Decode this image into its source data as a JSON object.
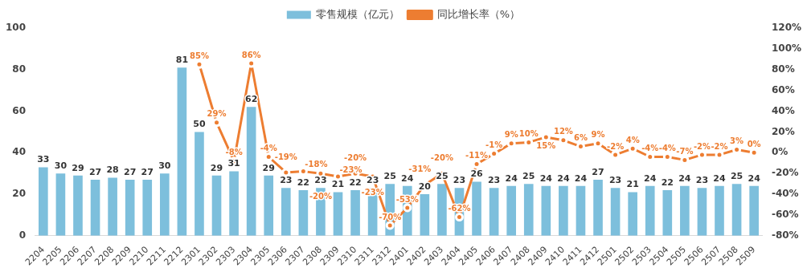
{
  "chart_data": {
    "type": "bar",
    "categories": [
      "2204",
      "2205",
      "2206",
      "2207",
      "2208",
      "2209",
      "2210",
      "2211",
      "2212",
      "2301",
      "2302",
      "2303",
      "2304",
      "2305",
      "2306",
      "2307",
      "2308",
      "2309",
      "2310",
      "2311",
      "2312",
      "2401",
      "2402",
      "2403",
      "2404",
      "2405",
      "2406",
      "2407",
      "2408",
      "2409",
      "2410",
      "2411",
      "2412",
      "2501",
      "2502",
      "2503",
      "2504",
      "2505",
      "2506",
      "2507",
      "2508",
      "2509"
    ],
    "series": [
      {
        "name": "零售规模（亿元）",
        "color": "#7dbfdc",
        "values": [
          33,
          30,
          29,
          27,
          28,
          27,
          27,
          30,
          81,
          50,
          29,
          31,
          62,
          29,
          23,
          22,
          23,
          21,
          22,
          23,
          25,
          24,
          20,
          25,
          23,
          26,
          23,
          24,
          25,
          24,
          24,
          24,
          27,
          23,
          21,
          24,
          22,
          24,
          23,
          24,
          25,
          24
        ],
        "value_labels": [
          "33",
          "30",
          "29",
          "27",
          "28",
          "27",
          "27",
          "30",
          "81",
          "50",
          "29",
          "31",
          "62",
          "29",
          "23",
          "22",
          "23",
          "21",
          "22",
          "23",
          "25",
          "24",
          "20",
          "25",
          "23",
          "26",
          "23",
          "24",
          "25",
          "24",
          "24",
          "24",
          "27",
          "23",
          "21",
          "24",
          "22",
          "24",
          "23",
          "24",
          "25",
          "24"
        ]
      },
      {
        "name": "同比增长率（%）",
        "type": "line",
        "axis": "y2",
        "color": "#ed7d31",
        "values": [
          null,
          null,
          null,
          null,
          null,
          null,
          null,
          null,
          null,
          85,
          29,
          -8,
          86,
          -4,
          -19,
          -18,
          -20,
          -23,
          -20,
          -23,
          -70,
          -53,
          -31,
          -20,
          -62,
          -11,
          -1,
          9,
          10,
          15,
          12,
          6,
          9,
          -2,
          4,
          -4,
          -4,
          -7,
          -2,
          -2,
          3,
          0
        ],
        "value_labels": [
          null,
          null,
          null,
          null,
          null,
          null,
          null,
          null,
          null,
          "85%",
          "29%",
          "-8%",
          "86%",
          "-4%",
          "-19%",
          "-18%",
          "-20%",
          "-23%",
          "-20%",
          "-23%",
          "-70%",
          "-53%",
          "-31%",
          "-20%",
          "-62%",
          "-11%",
          "-1%",
          "9%",
          "10%",
          "15%",
          "12%",
          "6%",
          "9%",
          "-2%",
          "4%",
          "-4%",
          "-4%",
          "-7%",
          "-2%",
          "-2%",
          "3%",
          "0%"
        ]
      }
    ],
    "ylim": [
      0,
      100
    ],
    "yticks": [
      0,
      20,
      40,
      60,
      80,
      100
    ],
    "y2lim": [
      -80,
      120
    ],
    "y2ticks": [
      {
        "value": -80,
        "label": "-80%"
      },
      {
        "value": -60,
        "label": "-60%"
      },
      {
        "value": -40,
        "label": "-40%"
      },
      {
        "value": -20,
        "label": "-20%"
      },
      {
        "value": 0,
        "label": "0%"
      },
      {
        "value": 20,
        "label": "20%"
      },
      {
        "value": 40,
        "label": "40%"
      },
      {
        "value": 60,
        "label": "60%"
      },
      {
        "value": 80,
        "label": "80%"
      },
      {
        "value": 100,
        "label": "100%"
      },
      {
        "value": 120,
        "label": "120%"
      }
    ],
    "legend": "top",
    "marker": "circle",
    "line_style": "solid"
  }
}
